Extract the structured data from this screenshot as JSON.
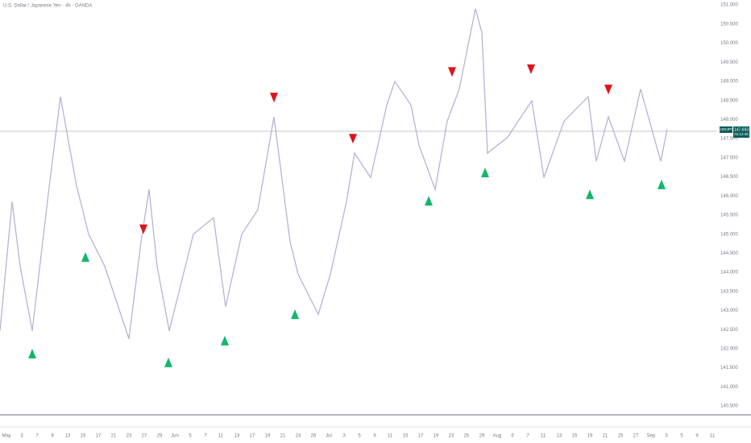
{
  "chart_data": {
    "type": "line",
    "title": "U.S. Dollar / Japanese Yen · 4h · OANDA",
    "symbol": "USDJPY",
    "countdown": "01:12:46",
    "current_price": 147.693,
    "xlim": [
      0,
      89
    ],
    "ylim": [
      140.27,
      151.13
    ],
    "yticks": [
      {
        "value": 151,
        "label": "151.000"
      },
      {
        "value": 150.5,
        "label": "150.500"
      },
      {
        "value": 150,
        "label": "150.000"
      },
      {
        "value": 149.5,
        "label": "149.500"
      },
      {
        "value": 149,
        "label": "149.000"
      },
      {
        "value": 148.5,
        "label": "148.500"
      },
      {
        "value": 148,
        "label": "148.000"
      },
      {
        "value": 147.5,
        "label": "147.500"
      },
      {
        "value": 147,
        "label": "147.000"
      },
      {
        "value": 146.5,
        "label": "146.500"
      },
      {
        "value": 146,
        "label": "146.000"
      },
      {
        "value": 145.5,
        "label": "145.500"
      },
      {
        "value": 145,
        "label": "145.000"
      },
      {
        "value": 144.5,
        "label": "144.500"
      },
      {
        "value": 144,
        "label": "144.000"
      },
      {
        "value": 143.5,
        "label": "143.500"
      },
      {
        "value": 143,
        "label": "143.000"
      },
      {
        "value": 142.5,
        "label": "142.500"
      },
      {
        "value": 142,
        "label": "142.000"
      },
      {
        "value": 141.5,
        "label": "141.500"
      },
      {
        "value": 141,
        "label": "141.000"
      },
      {
        "value": 140.5,
        "label": "140.500"
      }
    ],
    "xticks": [
      {
        "value": 0.8,
        "label": "May"
      },
      {
        "value": 2.7,
        "label": "3"
      },
      {
        "value": 4.6,
        "label": "7"
      },
      {
        "value": 6.5,
        "label": "9"
      },
      {
        "value": 8.4,
        "label": "13"
      },
      {
        "value": 10.3,
        "label": "15"
      },
      {
        "value": 12.2,
        "label": "17"
      },
      {
        "value": 14.1,
        "label": "21"
      },
      {
        "value": 16.0,
        "label": "23"
      },
      {
        "value": 17.9,
        "label": "27"
      },
      {
        "value": 19.8,
        "label": "29"
      },
      {
        "value": 21.7,
        "label": "Jun"
      },
      {
        "value": 23.6,
        "label": "5"
      },
      {
        "value": 25.5,
        "label": "7"
      },
      {
        "value": 27.4,
        "label": "11"
      },
      {
        "value": 29.4,
        "label": "13"
      },
      {
        "value": 31.3,
        "label": "17"
      },
      {
        "value": 33.2,
        "label": "19"
      },
      {
        "value": 35.1,
        "label": "21"
      },
      {
        "value": 37.0,
        "label": "24"
      },
      {
        "value": 38.9,
        "label": "26"
      },
      {
        "value": 40.8,
        "label": "Jul"
      },
      {
        "value": 42.7,
        "label": "3"
      },
      {
        "value": 44.6,
        "label": "5"
      },
      {
        "value": 46.5,
        "label": "9"
      },
      {
        "value": 48.4,
        "label": "11"
      },
      {
        "value": 50.3,
        "label": "15"
      },
      {
        "value": 52.2,
        "label": "17"
      },
      {
        "value": 54.1,
        "label": "19"
      },
      {
        "value": 56.0,
        "label": "23"
      },
      {
        "value": 57.9,
        "label": "25"
      },
      {
        "value": 59.8,
        "label": "29"
      },
      {
        "value": 61.7,
        "label": "Aug"
      },
      {
        "value": 63.6,
        "label": "5"
      },
      {
        "value": 65.5,
        "label": "7"
      },
      {
        "value": 67.4,
        "label": "11"
      },
      {
        "value": 69.4,
        "label": "13"
      },
      {
        "value": 71.3,
        "label": "15"
      },
      {
        "value": 73.2,
        "label": "19"
      },
      {
        "value": 75.1,
        "label": "21"
      },
      {
        "value": 77.0,
        "label": "25"
      },
      {
        "value": 78.9,
        "label": "27"
      },
      {
        "value": 80.8,
        "label": "Sep"
      },
      {
        "value": 82.7,
        "label": "3"
      },
      {
        "value": 84.6,
        "label": "5"
      },
      {
        "value": 86.5,
        "label": "9"
      },
      {
        "value": 88.4,
        "label": "11"
      }
    ],
    "series": [
      {
        "color": "#b6b3d6",
        "x": [
          0,
          1.5,
          2.5,
          4,
          6,
          7.5,
          9.5,
          11,
          13,
          16,
          17.5,
          18.5,
          19.5,
          21,
          24,
          26.5,
          28,
          30,
          32,
          34,
          36,
          37,
          39.5,
          41,
          43,
          44,
          46,
          48,
          49,
          51,
          52,
          54,
          55.5,
          57,
          59,
          59.8,
          60.5,
          63,
          66,
          67.5,
          70,
          73,
          74,
          75.5,
          77.5,
          79.5,
          82,
          82.8
        ],
        "values": [
          142.47,
          145.85,
          144.16,
          142.47,
          146.06,
          148.6,
          146.27,
          145.0,
          144.16,
          142.26,
          144.8,
          146.17,
          144.16,
          142.47,
          145.0,
          145.43,
          143.1,
          145.0,
          145.64,
          148.07,
          144.8,
          143.95,
          142.9,
          143.95,
          145.85,
          147.12,
          146.48,
          148.38,
          149.0,
          148.38,
          147.33,
          146.17,
          147.96,
          148.8,
          150.9,
          150.28,
          147.12,
          147.54,
          148.49,
          146.48,
          147.96,
          148.6,
          146.91,
          148.07,
          146.91,
          148.8,
          146.91,
          147.75
        ]
      }
    ],
    "signals": {
      "buy": {
        "color": "#12b76a",
        "x": [
          4.0,
          10.6,
          20.9,
          27.9,
          36.6,
          53.2,
          60.2,
          73.2,
          82.1
        ],
        "values": [
          142.0,
          144.53,
          141.77,
          142.34,
          143.03,
          146.0,
          146.74,
          146.17,
          146.43
        ]
      },
      "sell": {
        "color": "#e0131a",
        "x": [
          17.8,
          34.0,
          43.8,
          56.1,
          65.9,
          75.5
        ],
        "values": [
          145.0,
          148.45,
          147.37,
          149.12,
          149.19,
          148.66
        ]
      }
    }
  }
}
